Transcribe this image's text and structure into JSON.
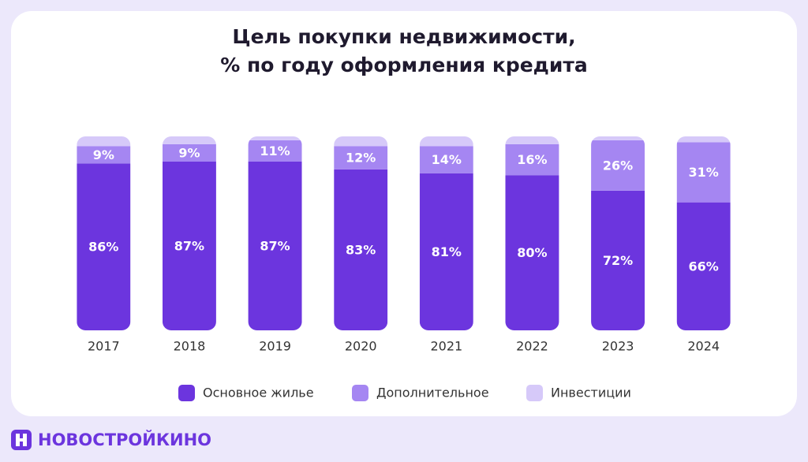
{
  "brand": "НОВОСТРОЙКИНО",
  "chart_data": {
    "type": "stacked-bar",
    "title": "Цель покупки недвижимости,",
    "subtitle": "% по году оформления кредита",
    "categories": [
      "2017",
      "2018",
      "2019",
      "2020",
      "2021",
      "2022",
      "2023",
      "2024"
    ],
    "ylim": [
      0,
      100
    ],
    "series": [
      {
        "name": "Основное жилье",
        "color": "#6c35de",
        "values": [
          86,
          87,
          87,
          83,
          81,
          80,
          72,
          66
        ],
        "value_labels": [
          "86%",
          "87%",
          "87%",
          "83%",
          "81%",
          "80%",
          "72%",
          "66%"
        ]
      },
      {
        "name": "Дополнительное",
        "color": "#a586f2",
        "values": [
          9,
          9,
          11,
          12,
          14,
          16,
          26,
          31
        ],
        "value_labels": [
          "9%",
          "9%",
          "11%",
          "12%",
          "14%",
          "16%",
          "26%",
          "31%"
        ]
      },
      {
        "name": "Инвестиции",
        "color": "#d6c9f9",
        "values": [
          5,
          4,
          2,
          5,
          5,
          4,
          2,
          3
        ]
      }
    ]
  }
}
